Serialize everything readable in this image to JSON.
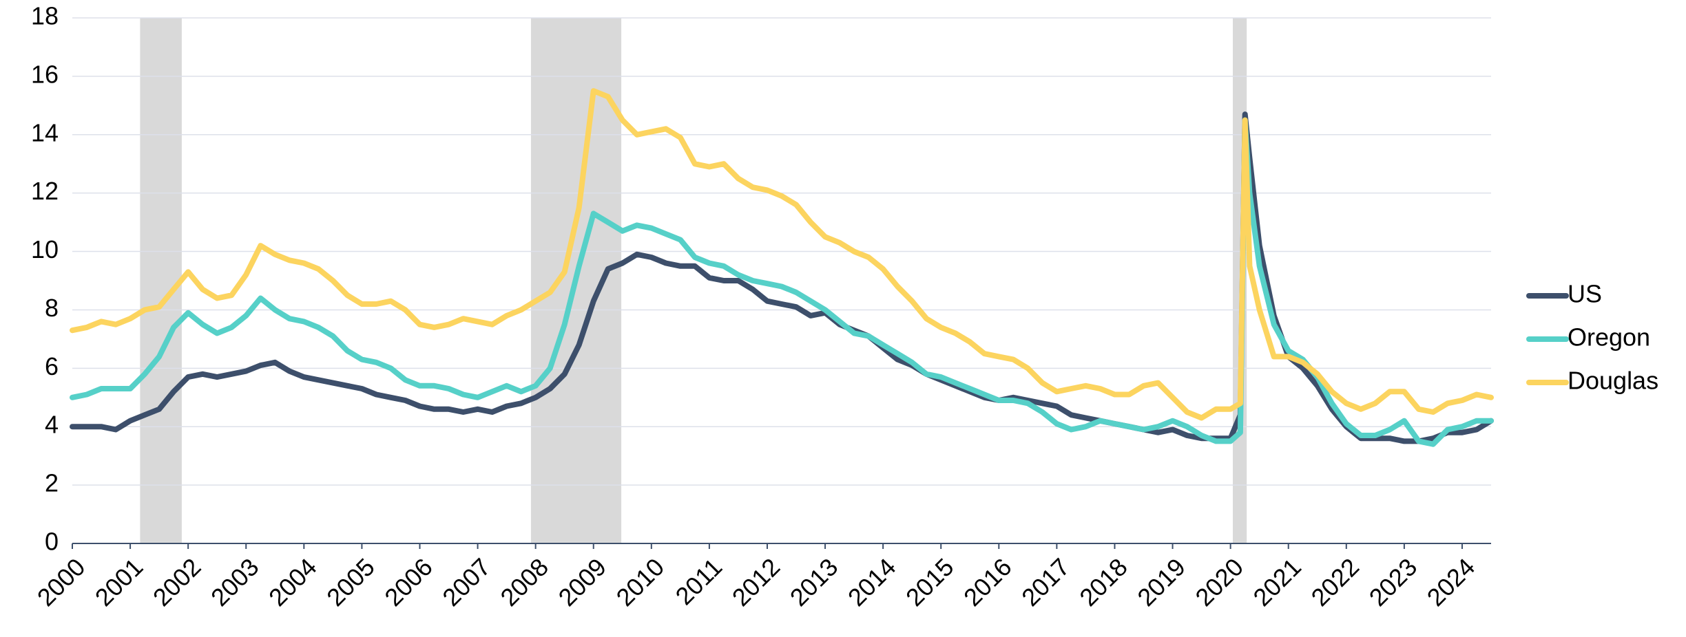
{
  "chart_data": {
    "type": "line",
    "x": [
      2000,
      2000.25,
      2000.5,
      2000.75,
      2001,
      2001.25,
      2001.5,
      2001.75,
      2002,
      2002.25,
      2002.5,
      2002.75,
      2003,
      2003.25,
      2003.5,
      2003.75,
      2004,
      2004.25,
      2004.5,
      2004.75,
      2005,
      2005.25,
      2005.5,
      2005.75,
      2006,
      2006.25,
      2006.5,
      2006.75,
      2007,
      2007.25,
      2007.5,
      2007.75,
      2008,
      2008.25,
      2008.5,
      2008.75,
      2009,
      2009.25,
      2009.5,
      2009.75,
      2010,
      2010.25,
      2010.5,
      2010.75,
      2011,
      2011.25,
      2011.5,
      2011.75,
      2012,
      2012.25,
      2012.5,
      2012.75,
      2013,
      2013.25,
      2013.5,
      2013.75,
      2014,
      2014.25,
      2014.5,
      2014.75,
      2015,
      2015.25,
      2015.5,
      2015.75,
      2016,
      2016.25,
      2016.5,
      2016.75,
      2017,
      2017.25,
      2017.5,
      2017.75,
      2018,
      2018.25,
      2018.5,
      2018.75,
      2019,
      2019.25,
      2019.5,
      2019.75,
      2020,
      2020.17,
      2020.25,
      2020.33,
      2020.5,
      2020.75,
      2021,
      2021.25,
      2021.5,
      2021.75,
      2022,
      2022.25,
      2022.5,
      2022.75,
      2023,
      2023.25,
      2023.5,
      2023.75,
      2024,
      2024.25,
      2024.5
    ],
    "series": [
      {
        "name": "US",
        "color": "#3d4f6b",
        "values": [
          4.0,
          4.0,
          4.0,
          3.9,
          4.2,
          4.4,
          4.6,
          5.2,
          5.7,
          5.8,
          5.7,
          5.8,
          5.9,
          6.1,
          6.2,
          5.9,
          5.7,
          5.6,
          5.5,
          5.4,
          5.3,
          5.1,
          5.0,
          4.9,
          4.7,
          4.6,
          4.6,
          4.5,
          4.6,
          4.5,
          4.7,
          4.8,
          5.0,
          5.3,
          5.8,
          6.8,
          8.3,
          9.4,
          9.6,
          9.9,
          9.8,
          9.6,
          9.5,
          9.5,
          9.1,
          9.0,
          9.0,
          8.7,
          8.3,
          8.2,
          8.1,
          7.8,
          7.9,
          7.5,
          7.3,
          7.1,
          6.7,
          6.3,
          6.1,
          5.8,
          5.6,
          5.4,
          5.2,
          5.0,
          4.9,
          5.0,
          4.9,
          4.8,
          4.7,
          4.4,
          4.3,
          4.2,
          4.1,
          4.0,
          3.9,
          3.8,
          3.9,
          3.7,
          3.6,
          3.6,
          3.6,
          4.4,
          14.7,
          13.2,
          10.2,
          7.8,
          6.4,
          6.0,
          5.4,
          4.6,
          4.0,
          3.6,
          3.6,
          3.6,
          3.5,
          3.5,
          3.6,
          3.8,
          3.8,
          3.9,
          4.2
        ]
      },
      {
        "name": "Oregon",
        "color": "#56d0c8",
        "values": [
          5.0,
          5.1,
          5.3,
          5.3,
          5.3,
          5.8,
          6.4,
          7.4,
          7.9,
          7.5,
          7.2,
          7.4,
          7.8,
          8.4,
          8.0,
          7.7,
          7.6,
          7.4,
          7.1,
          6.6,
          6.3,
          6.2,
          6.0,
          5.6,
          5.4,
          5.4,
          5.3,
          5.1,
          5.0,
          5.2,
          5.4,
          5.2,
          5.4,
          6.0,
          7.5,
          9.5,
          11.3,
          11.0,
          10.7,
          10.9,
          10.8,
          10.6,
          10.4,
          9.8,
          9.6,
          9.5,
          9.2,
          9.0,
          8.9,
          8.8,
          8.6,
          8.3,
          8.0,
          7.6,
          7.2,
          7.1,
          6.8,
          6.5,
          6.2,
          5.8,
          5.7,
          5.5,
          5.3,
          5.1,
          4.9,
          4.9,
          4.8,
          4.5,
          4.1,
          3.9,
          4.0,
          4.2,
          4.1,
          4.0,
          3.9,
          4.0,
          4.2,
          4.0,
          3.7,
          3.5,
          3.5,
          3.8,
          14.5,
          12.0,
          9.5,
          7.5,
          6.6,
          6.3,
          5.7,
          4.8,
          4.1,
          3.7,
          3.7,
          3.9,
          4.2,
          3.5,
          3.4,
          3.9,
          4.0,
          4.2,
          4.2
        ]
      },
      {
        "name": "Douglas",
        "color": "#fcd45f",
        "values": [
          7.3,
          7.4,
          7.6,
          7.5,
          7.7,
          8.0,
          8.1,
          8.7,
          9.3,
          8.7,
          8.4,
          8.5,
          9.2,
          10.2,
          9.9,
          9.7,
          9.6,
          9.4,
          9.0,
          8.5,
          8.2,
          8.2,
          8.3,
          8.0,
          7.5,
          7.4,
          7.5,
          7.7,
          7.6,
          7.5,
          7.8,
          8.0,
          8.3,
          8.6,
          9.3,
          11.5,
          15.5,
          15.3,
          14.5,
          14.0,
          14.1,
          14.2,
          13.9,
          13.0,
          12.9,
          13.0,
          12.5,
          12.2,
          12.1,
          11.9,
          11.6,
          11.0,
          10.5,
          10.3,
          10.0,
          9.8,
          9.4,
          8.8,
          8.3,
          7.7,
          7.4,
          7.2,
          6.9,
          6.5,
          6.4,
          6.3,
          6.0,
          5.5,
          5.2,
          5.3,
          5.4,
          5.3,
          5.1,
          5.1,
          5.4,
          5.5,
          5.0,
          4.5,
          4.3,
          4.6,
          4.6,
          4.8,
          14.5,
          9.5,
          8.0,
          6.4,
          6.4,
          6.2,
          5.8,
          5.2,
          4.8,
          4.6,
          4.8,
          5.2,
          5.2,
          4.6,
          4.5,
          4.8,
          4.9,
          5.1,
          5.0
        ]
      }
    ],
    "recessions": [
      [
        2001.17,
        2001.89
      ],
      [
        2007.92,
        2009.48
      ],
      [
        2020.04,
        2020.28
      ]
    ],
    "xlim": [
      2000,
      2024.5
    ],
    "xticks": [
      2000,
      2001,
      2002,
      2003,
      2004,
      2005,
      2006,
      2007,
      2008,
      2009,
      2010,
      2011,
      2012,
      2013,
      2014,
      2015,
      2016,
      2017,
      2018,
      2019,
      2020,
      2021,
      2022,
      2023,
      2024
    ],
    "ylim": [
      0,
      18
    ],
    "yticks": [
      0,
      2,
      4,
      6,
      8,
      10,
      12,
      14,
      16,
      18
    ],
    "grid": true,
    "legend": "right"
  }
}
